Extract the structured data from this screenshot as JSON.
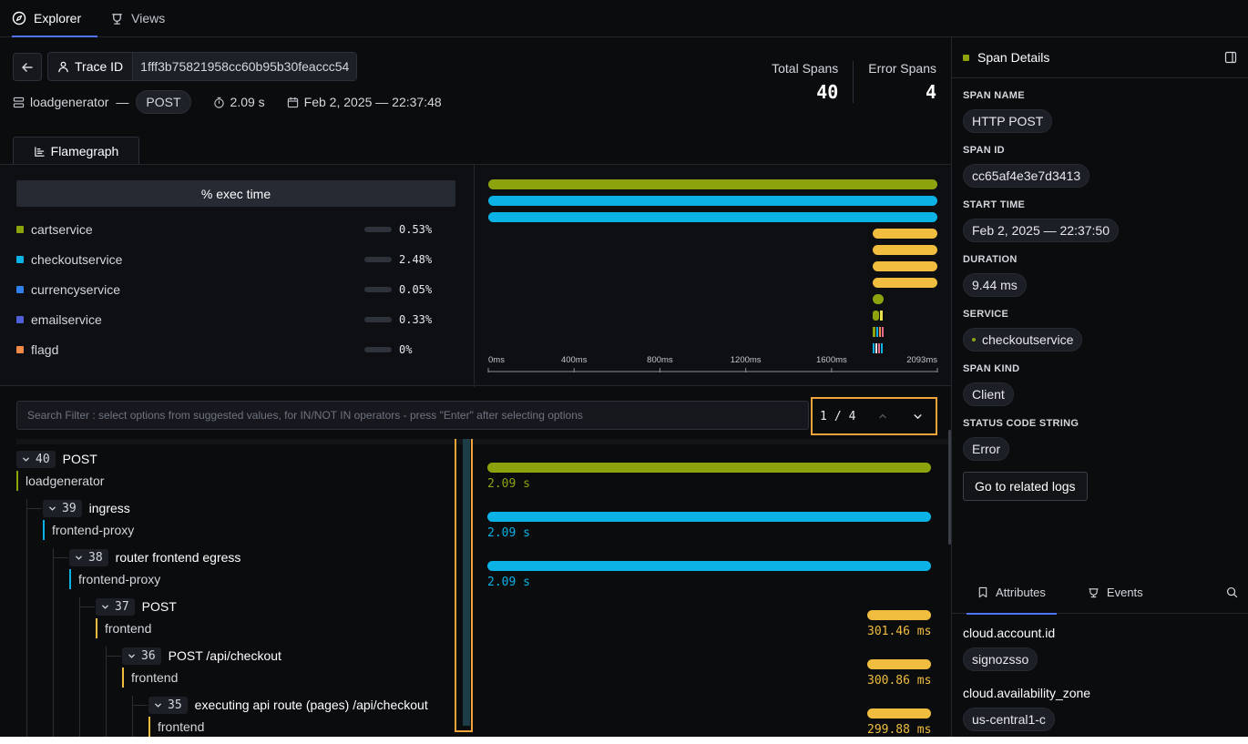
{
  "nav": {
    "tabs": [
      {
        "label": "Explorer",
        "icon": "compass-icon"
      },
      {
        "label": "Views",
        "icon": "views-icon"
      }
    ]
  },
  "trace": {
    "id_label": "Trace ID",
    "id_value": "1fff3b75821958cc60b95b30feaccc54",
    "service": "loadgenerator",
    "dash": "—",
    "method": "POST",
    "duration": "2.09 s",
    "timestamp": "Feb 2, 2025 — 22:37:48"
  },
  "stats": {
    "total_label": "Total Spans",
    "total_value": "40",
    "error_label": "Error Spans",
    "error_value": "4"
  },
  "flamegraph": {
    "tab_label": "Flamegraph",
    "exec_header": "% exec time",
    "legend": [
      {
        "name": "cartservice",
        "pct": "0.53%",
        "color": "#8da30e"
      },
      {
        "name": "checkoutservice",
        "pct": "2.48%",
        "color": "#0bb2e6"
      },
      {
        "name": "currencyservice",
        "pct": "0.05%",
        "color": "#2f80ed"
      },
      {
        "name": "emailservice",
        "pct": "0.33%",
        "color": "#4f5fd6"
      },
      {
        "name": "flagd",
        "pct": "0%",
        "color": "#f28b4a"
      }
    ],
    "axis_ticks": [
      "0ms",
      "400ms",
      "800ms",
      "1200ms",
      "1600ms",
      "2093ms"
    ]
  },
  "search": {
    "placeholder": "Search Filter : select options from suggested values, for IN/NOT IN operators - press \"Enter\" after selecting options",
    "pager_current": "1",
    "pager_sep": "/",
    "pager_total": "4"
  },
  "spans": [
    {
      "count": "40",
      "name": "POST",
      "service": "loadgenerator",
      "duration": "2.09 s",
      "color": "#8da30e"
    },
    {
      "count": "39",
      "name": "ingress",
      "service": "frontend-proxy",
      "duration": "2.09 s",
      "color": "#0bb2e6"
    },
    {
      "count": "38",
      "name": "router frontend egress",
      "service": "frontend-proxy",
      "duration": "2.09 s",
      "color": "#0bb2e6"
    },
    {
      "count": "37",
      "name": "POST",
      "service": "frontend",
      "duration": "301.46 ms",
      "color": "#f0bd3f"
    },
    {
      "count": "36",
      "name": "POST /api/checkout",
      "service": "frontend",
      "duration": "300.86 ms",
      "color": "#f0bd3f"
    },
    {
      "count": "35",
      "name": "executing api route (pages) /api/checkout",
      "service": "frontend",
      "duration": "299.88 ms",
      "color": "#f0bd3f"
    }
  ],
  "details": {
    "title": "Span Details",
    "fields": [
      {
        "label": "SPAN NAME",
        "value": "HTTP POST"
      },
      {
        "label": "SPAN ID",
        "value": "cc65af4e3e7d3413"
      },
      {
        "label": "START TIME",
        "value": "Feb 2, 2025 — 22:37:50"
      },
      {
        "label": "DURATION",
        "value": "9.44 ms"
      },
      {
        "label": "SERVICE",
        "value": "checkoutservice"
      },
      {
        "label": "SPAN KIND",
        "value": "Client"
      },
      {
        "label": "STATUS CODE STRING",
        "value": "Error"
      }
    ],
    "related_logs": "Go to related logs",
    "tabs": [
      {
        "label": "Attributes",
        "icon": "bookmark-icon"
      },
      {
        "label": "Events",
        "icon": "events-icon"
      }
    ],
    "attributes": [
      {
        "key": "cloud.account.id",
        "value": "signozsso"
      },
      {
        "key": "cloud.availability_zone",
        "value": "us-central1-c"
      }
    ]
  },
  "colors": {
    "accent": "#4e74f8",
    "highlight": "#f0a43a",
    "cartservice": "#8da30e",
    "frontend_proxy": "#0bb2e6",
    "frontend": "#f0bd3f"
  }
}
